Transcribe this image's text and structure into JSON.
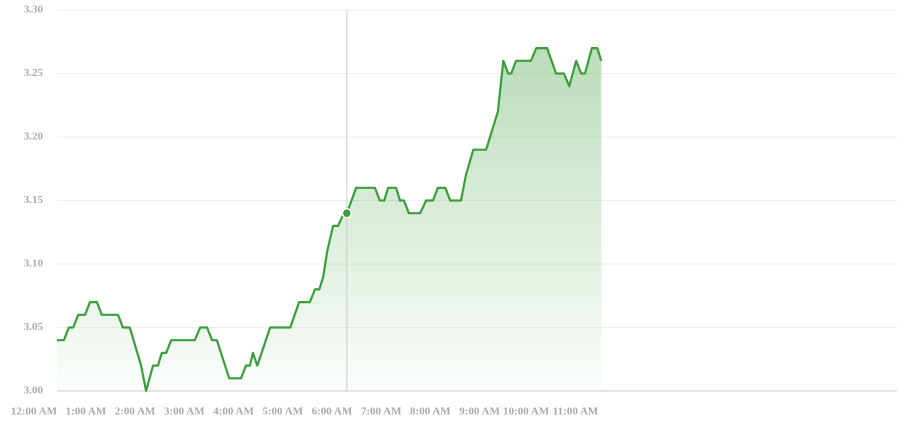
{
  "chart_data": {
    "type": "area",
    "x": [
      0,
      0.14,
      0.24,
      0.33,
      0.43,
      0.57,
      0.67,
      0.81,
      0.91,
      1.24,
      1.34,
      1.48,
      1.71,
      1.81,
      1.95,
      2.05,
      2.13,
      2.22,
      2.32,
      2.8,
      2.91,
      3.05,
      3.15,
      3.25,
      3.5,
      3.74,
      3.84,
      3.92,
      3.98,
      4.07,
      4.33,
      4.74,
      4.92,
      5.14,
      5.24,
      5.33,
      5.41,
      5.49,
      5.61,
      5.71,
      5.83,
      5.89,
      6.08,
      6.46,
      6.56,
      6.65,
      6.73,
      6.89,
      6.97,
      7.05,
      7.15,
      7.38,
      7.5,
      7.64,
      7.74,
      7.89,
      7.99,
      8.21,
      8.31,
      8.46,
      8.72,
      8.96,
      9.07,
      9.17,
      9.23,
      9.33,
      9.63,
      9.74,
      9.96,
      10.14,
      10.3,
      10.41,
      10.55,
      10.65,
      10.73,
      10.87,
      10.98,
      11.06
    ],
    "values": [
      3.04,
      3.04,
      3.05,
      3.05,
      3.06,
      3.06,
      3.07,
      3.07,
      3.06,
      3.06,
      3.05,
      3.05,
      3.02,
      3.0,
      3.02,
      3.02,
      3.03,
      3.03,
      3.04,
      3.04,
      3.05,
      3.05,
      3.04,
      3.04,
      3.01,
      3.01,
      3.02,
      3.02,
      3.03,
      3.02,
      3.05,
      3.05,
      3.07,
      3.07,
      3.08,
      3.08,
      3.09,
      3.11,
      3.13,
      3.13,
      3.14,
      3.14,
      3.16,
      3.16,
      3.15,
      3.15,
      3.16,
      3.16,
      3.15,
      3.15,
      3.14,
      3.14,
      3.15,
      3.15,
      3.16,
      3.16,
      3.15,
      3.15,
      3.17,
      3.19,
      3.19,
      3.22,
      3.26,
      3.25,
      3.25,
      3.26,
      3.26,
      3.27,
      3.27,
      3.25,
      3.25,
      3.24,
      3.26,
      3.25,
      3.25,
      3.27,
      3.27,
      3.26
    ],
    "color": "#3a9e3a",
    "hover_index": 41,
    "xlim": [
      0,
      17.07
    ],
    "xticks": [
      {
        "value": 0,
        "label": "12:00 AM"
      },
      {
        "value": 1,
        "label": "1:00 AM"
      },
      {
        "value": 2,
        "label": "2:00 AM"
      },
      {
        "value": 3,
        "label": "3:00 AM"
      },
      {
        "value": 4,
        "label": "4:00 AM"
      },
      {
        "value": 5,
        "label": "5:00 AM"
      },
      {
        "value": 6,
        "label": "6:00 AM"
      },
      {
        "value": 7,
        "label": "7:00 AM"
      },
      {
        "value": 8,
        "label": "8:00 AM"
      },
      {
        "value": 9,
        "label": "9:00 AM"
      },
      {
        "value": 10,
        "label": "10:00 AM"
      },
      {
        "value": 11,
        "label": "11:00 AM"
      }
    ],
    "ylim": [
      3,
      3.3
    ],
    "yticks": [
      {
        "value": 3,
        "label": "3.00"
      },
      3.05,
      {
        "value": 3.1,
        "label": "3.10"
      },
      3.15,
      {
        "value": 3.2,
        "label": "3.20"
      },
      3.25,
      {
        "value": 3.3,
        "label": "3.30"
      }
    ],
    "grid": true
  }
}
